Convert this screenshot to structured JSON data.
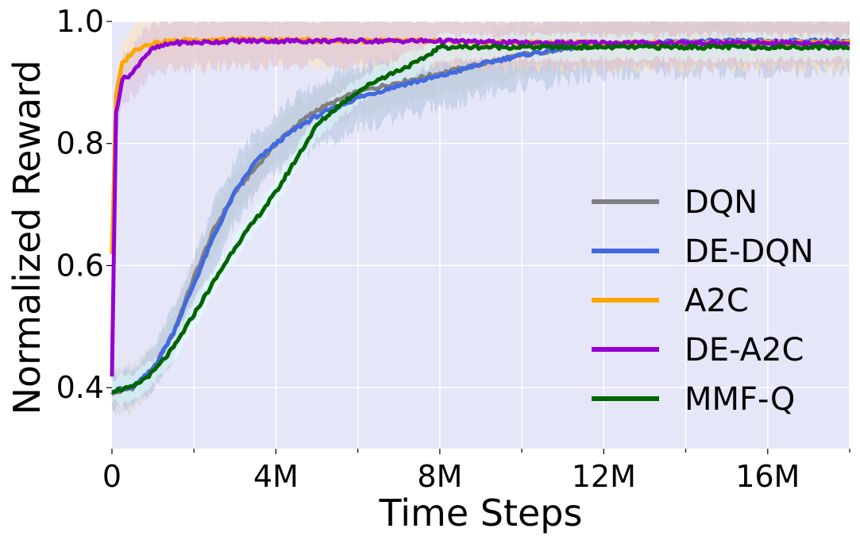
{
  "chart_data": {
    "type": "line",
    "title": "",
    "xlabel": "Time Steps",
    "ylabel": "Normalized Reward",
    "xlim": [
      0,
      18000000
    ],
    "ylim": [
      0.3,
      1.0
    ],
    "x_ticks": [
      {
        "value": 0,
        "label": "0"
      },
      {
        "value": 4000000,
        "label": "4M"
      },
      {
        "value": 8000000,
        "label": "8M"
      },
      {
        "value": 12000000,
        "label": "12M"
      },
      {
        "value": 16000000,
        "label": "16M"
      }
    ],
    "x_minor_ticks": [
      2000000,
      6000000,
      10000000,
      14000000,
      18000000
    ],
    "y_ticks": [
      {
        "value": 0.4,
        "label": "0.4"
      },
      {
        "value": 0.6,
        "label": "0.6"
      },
      {
        "value": 0.8,
        "label": "0.8"
      },
      {
        "value": 1.0,
        "label": "1.0"
      }
    ],
    "grid": true,
    "background": "#e6e6f9",
    "legend_position": "lower-right",
    "series": [
      {
        "name": "DQN",
        "color": "#808080",
        "band_color": "#d3d3d3",
        "x": [
          0,
          500000,
          1000000,
          1500000,
          2000000,
          2500000,
          3000000,
          3500000,
          4000000,
          4500000,
          5000000,
          6000000,
          7000000,
          8000000,
          9000000,
          10000000,
          11000000,
          12000000,
          14000000,
          16000000,
          18000000
        ],
        "y": [
          0.39,
          0.4,
          0.43,
          0.49,
          0.58,
          0.66,
          0.72,
          0.76,
          0.8,
          0.83,
          0.855,
          0.885,
          0.9,
          0.915,
          0.93,
          0.945,
          0.955,
          0.96,
          0.965,
          0.965,
          0.965
        ],
        "band": [
          0.035,
          0.035,
          0.035,
          0.035,
          0.035,
          0.035,
          0.035,
          0.035,
          0.035,
          0.035,
          0.035,
          0.035,
          0.035,
          0.035,
          0.035,
          0.035,
          0.035,
          0.035,
          0.035,
          0.035,
          0.035
        ]
      },
      {
        "name": "DE-DQN",
        "color": "#4169e1",
        "band_color": "#b0c4de",
        "x": [
          0,
          500000,
          1000000,
          1500000,
          2000000,
          2500000,
          3000000,
          3500000,
          4000000,
          4500000,
          5000000,
          6000000,
          7000000,
          8000000,
          9000000,
          10000000,
          11000000,
          12000000,
          14000000,
          16000000,
          18000000
        ],
        "y": [
          0.395,
          0.4,
          0.43,
          0.49,
          0.57,
          0.65,
          0.72,
          0.77,
          0.8,
          0.825,
          0.845,
          0.875,
          0.895,
          0.91,
          0.93,
          0.945,
          0.955,
          0.962,
          0.967,
          0.968,
          0.968
        ],
        "band": [
          0.03,
          0.03,
          0.03,
          0.04,
          0.04,
          0.05,
          0.05,
          0.05,
          0.05,
          0.05,
          0.05,
          0.05,
          0.05,
          0.05,
          0.05,
          0.05,
          0.05,
          0.05,
          0.05,
          0.05,
          0.05
        ]
      },
      {
        "name": "A2C",
        "color": "#ffa500",
        "band_color": "#ffe4b5",
        "x": [
          0,
          100000,
          250000,
          500000,
          750000,
          1000000,
          1500000,
          2000000,
          3000000,
          4000000,
          6000000,
          8000000,
          10000000,
          12000000,
          14000000,
          16000000,
          18000000
        ],
        "y": [
          0.62,
          0.88,
          0.93,
          0.95,
          0.96,
          0.965,
          0.968,
          0.97,
          0.97,
          0.97,
          0.968,
          0.968,
          0.965,
          0.965,
          0.965,
          0.965,
          0.965
        ],
        "band": [
          0.03,
          0.03,
          0.035,
          0.04,
          0.04,
          0.04,
          0.04,
          0.04,
          0.04,
          0.04,
          0.04,
          0.04,
          0.04,
          0.04,
          0.04,
          0.04,
          0.04
        ]
      },
      {
        "name": "DE-A2C",
        "color": "#9400d3",
        "band_color": "#d8bfd8",
        "x": [
          0,
          100000,
          250000,
          500000,
          750000,
          1000000,
          1500000,
          2000000,
          3000000,
          4000000,
          6000000,
          8000000,
          10000000,
          12000000,
          14000000,
          16000000,
          18000000
        ],
        "y": [
          0.42,
          0.85,
          0.905,
          0.915,
          0.94,
          0.955,
          0.965,
          0.965,
          0.968,
          0.968,
          0.968,
          0.968,
          0.965,
          0.965,
          0.965,
          0.965,
          0.965
        ],
        "band": [
          0.03,
          0.04,
          0.04,
          0.04,
          0.04,
          0.04,
          0.04,
          0.04,
          0.04,
          0.04,
          0.04,
          0.04,
          0.04,
          0.04,
          0.04,
          0.04,
          0.04
        ]
      },
      {
        "name": "MMF-Q",
        "color": "#006400",
        "band_color": "#e0ffff",
        "x": [
          0,
          500000,
          1000000,
          1500000,
          2000000,
          2500000,
          3000000,
          3500000,
          4000000,
          4500000,
          5000000,
          5500000,
          6000000,
          6500000,
          7000000,
          7500000,
          8000000,
          9000000,
          10000000,
          12000000,
          14000000,
          16000000,
          18000000
        ],
        "y": [
          0.395,
          0.4,
          0.425,
          0.465,
          0.52,
          0.575,
          0.63,
          0.675,
          0.72,
          0.775,
          0.83,
          0.86,
          0.885,
          0.905,
          0.92,
          0.935,
          0.958,
          0.958,
          0.958,
          0.958,
          0.958,
          0.958,
          0.958
        ],
        "band": [
          0.02,
          0.02,
          0.02,
          0.02,
          0.02,
          0.02,
          0.02,
          0.02,
          0.02,
          0.02,
          0.02,
          0.02,
          0.02,
          0.02,
          0.02,
          0.02,
          0.02,
          0.02,
          0.02,
          0.02,
          0.02,
          0.02,
          0.02
        ]
      }
    ]
  }
}
